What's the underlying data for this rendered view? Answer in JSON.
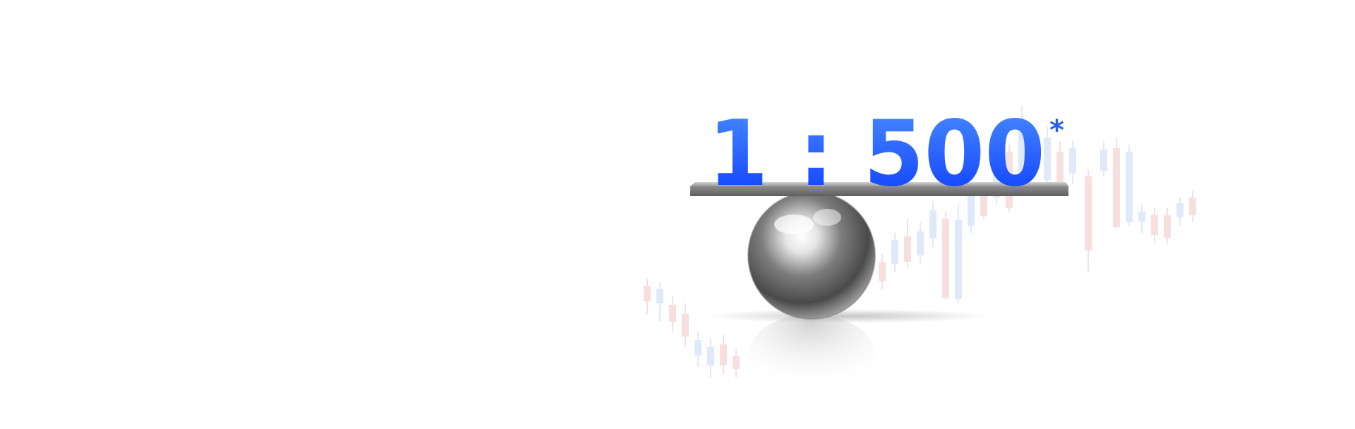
{
  "banner": {
    "leverage_ratio": "1 : 500",
    "asterisk": "*"
  },
  "colors": {
    "ratio_top": "#4a8dff",
    "ratio_bottom": "#0b3bff",
    "asterisk": "#2a5cf0",
    "candle_up": "#c8d8f5",
    "candle_down": "#f5c8c8",
    "plank": "#8a8a8a",
    "ball": "#9a9a9a"
  },
  "icons": {
    "balance": "metal-ball-balance-icon"
  }
}
